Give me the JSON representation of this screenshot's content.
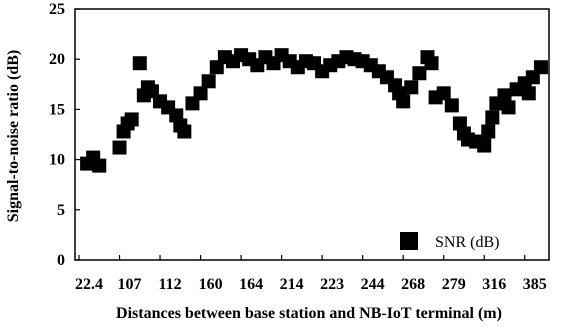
{
  "chart_data": {
    "type": "scatter",
    "title": "",
    "xlabel": "Distances between base station and NB-IoT terminal (m)",
    "ylabel": "Signal-to-noise ratio (dB)",
    "ylim": [
      0,
      25
    ],
    "y_ticks": [
      "0",
      "5",
      "10",
      "15",
      "20",
      "25"
    ],
    "x_tick_labels": [
      "22.4",
      "107",
      "112",
      "160",
      "164",
      "214",
      "223",
      "244",
      "268",
      "279",
      "316",
      "385"
    ],
    "legend": {
      "label": "SNR (dB)",
      "position": "bottom-right"
    },
    "marker_color": "#000000",
    "series": [
      {
        "name": "SNR (dB)",
        "points": [
          [
            0.2,
            9.6
          ],
          [
            0.35,
            10.2
          ],
          [
            0.5,
            9.4
          ],
          [
            1.0,
            11.2
          ],
          [
            1.1,
            12.8
          ],
          [
            1.2,
            13.6
          ],
          [
            1.3,
            14.0
          ],
          [
            1.5,
            19.6
          ],
          [
            1.6,
            16.4
          ],
          [
            1.7,
            17.2
          ],
          [
            1.8,
            16.8
          ],
          [
            2.0,
            15.8
          ],
          [
            2.2,
            15.2
          ],
          [
            2.4,
            14.4
          ],
          [
            2.5,
            13.4
          ],
          [
            2.6,
            12.8
          ],
          [
            2.8,
            15.6
          ],
          [
            3.0,
            16.6
          ],
          [
            3.2,
            17.8
          ],
          [
            3.4,
            19.2
          ],
          [
            3.6,
            20.2
          ],
          [
            3.8,
            19.8
          ],
          [
            4.0,
            20.4
          ],
          [
            4.2,
            20.0
          ],
          [
            4.4,
            19.4
          ],
          [
            4.6,
            20.2
          ],
          [
            4.8,
            19.6
          ],
          [
            5.0,
            20.4
          ],
          [
            5.2,
            19.8
          ],
          [
            5.4,
            19.2
          ],
          [
            5.6,
            19.8
          ],
          [
            5.8,
            19.6
          ],
          [
            6.0,
            18.8
          ],
          [
            6.2,
            19.4
          ],
          [
            6.4,
            19.8
          ],
          [
            6.6,
            20.2
          ],
          [
            6.8,
            20.0
          ],
          [
            7.0,
            19.8
          ],
          [
            7.2,
            19.4
          ],
          [
            7.4,
            18.8
          ],
          [
            7.6,
            18.2
          ],
          [
            7.8,
            17.4
          ],
          [
            7.9,
            16.6
          ],
          [
            8.0,
            15.8
          ],
          [
            8.2,
            17.2
          ],
          [
            8.4,
            18.6
          ],
          [
            8.6,
            20.2
          ],
          [
            8.7,
            19.6
          ],
          [
            8.8,
            16.2
          ],
          [
            9.0,
            16.6
          ],
          [
            9.2,
            15.4
          ],
          [
            9.4,
            13.6
          ],
          [
            9.5,
            12.6
          ],
          [
            9.6,
            12.0
          ],
          [
            9.8,
            11.8
          ],
          [
            10.0,
            11.4
          ],
          [
            10.1,
            12.8
          ],
          [
            10.2,
            14.2
          ],
          [
            10.3,
            15.6
          ],
          [
            10.5,
            16.4
          ],
          [
            10.6,
            15.2
          ],
          [
            10.8,
            17.0
          ],
          [
            11.0,
            17.6
          ],
          [
            11.1,
            16.6
          ],
          [
            11.2,
            18.2
          ],
          [
            11.4,
            19.2
          ]
        ]
      }
    ]
  }
}
